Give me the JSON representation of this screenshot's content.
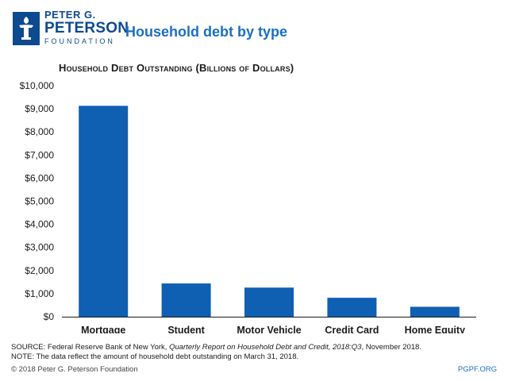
{
  "brand": {
    "line1": "PETER G.",
    "line2": "PETERSON",
    "line3": "FOUNDATION"
  },
  "header": {
    "title": "Household debt by type"
  },
  "colors": {
    "bar": "#0f5fb3",
    "accent": "#1a6fc4",
    "brand": "#0d4a8f"
  },
  "chart_data": {
    "type": "bar",
    "title": "Household Debt Outstanding (Billions of Dollars)",
    "categories": [
      "Mortgage",
      "Student",
      "Motor Vehicle",
      "Credit Card",
      "Home Equity"
    ],
    "values": [
      9130,
      1440,
      1260,
      820,
      430
    ],
    "ylim": [
      0,
      10000
    ],
    "yticks": [
      0,
      1000,
      2000,
      3000,
      4000,
      5000,
      6000,
      7000,
      8000,
      9000,
      10000
    ],
    "ytick_labels": [
      "$0",
      "$1,000",
      "$2,000",
      "$3,000",
      "$4,000",
      "$5,000",
      "$6,000",
      "$7,000",
      "$8,000",
      "$9,000",
      "$10,000"
    ],
    "grid": false,
    "legend": false
  },
  "notes": {
    "source_prefix": "SOURCE: Federal Reserve Bank of New York, ",
    "source_title": "Quarterly Report on Household Debt and Credit, 2018:Q3",
    "source_suffix": ", November 2018.",
    "note": "NOTE: The data reflect the amount of household debt outstanding on March 31, 2018."
  },
  "footer": {
    "copyright": "© 2018 Peter G. Peterson Foundation",
    "site": "PGPF.ORG"
  }
}
